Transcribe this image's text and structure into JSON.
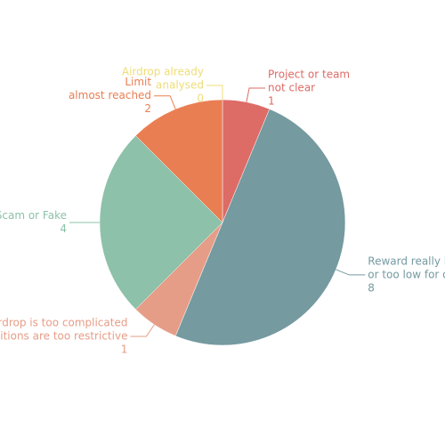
{
  "chart_data": {
    "type": "pie",
    "categories": [
      [
        "Airdrop already",
        "analysed"
      ],
      [
        "Project or team",
        "not clear"
      ],
      [
        "Reward really low",
        "or too low for our effort"
      ],
      [
        "Airdrop is too complicated",
        "or conditions are too restrictive"
      ],
      [
        "Scam or Fake"
      ],
      [
        "Limit",
        "almost reached"
      ]
    ],
    "values": [
      0,
      1,
      8,
      1,
      4,
      2
    ],
    "colors": [
      "#eedd78",
      "#dd6b66",
      "#759aa0",
      "#e69d87",
      "#8dc1a9",
      "#ea7e53"
    ]
  }
}
